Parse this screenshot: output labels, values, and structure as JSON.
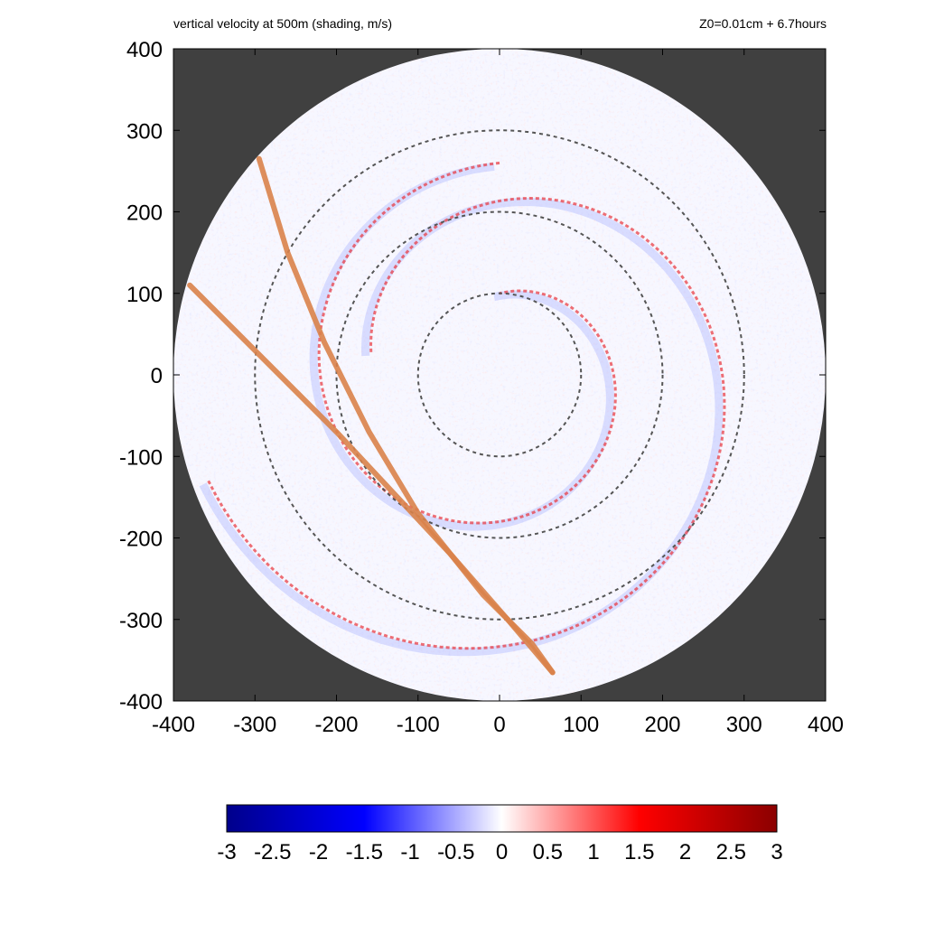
{
  "header": {
    "title": "vertical velocity at 500m (shading, m/s)",
    "subtitle": "Z0=0.01cm  + 6.7hours"
  },
  "chart_data": {
    "type": "heatmap",
    "title": "vertical velocity at 500m (shading, m/s)",
    "subtitle": "Z0=0.01cm  + 6.7hours",
    "xlabel": "",
    "ylabel": "",
    "xlim": [
      -400,
      400
    ],
    "ylim": [
      -400,
      400
    ],
    "x_ticks": [
      "-400",
      "-300",
      "-200",
      "-100",
      "0",
      "100",
      "200",
      "300",
      "400"
    ],
    "y_ticks": [
      "400",
      "300",
      "200",
      "100",
      "0",
      "-100",
      "-200",
      "-300",
      "-400"
    ],
    "domain_radius": 400,
    "background_color": "#404040",
    "dashed_circles_radius": [
      100,
      200,
      300
    ],
    "dashed_circle_color": "#555555",
    "spiral_bands_approx_radius": [
      {
        "sign": "positive",
        "start_angle_deg": 90,
        "r_start": 260,
        "r_end": 100,
        "turn_deg": 360
      },
      {
        "sign": "positive",
        "start_angle_deg": 200,
        "r_start": 380,
        "r_end": 160,
        "turn_deg": 330
      }
    ],
    "tracks": [
      {
        "color": "#d9824a",
        "points": [
          [
            -380,
            110
          ],
          [
            -330,
            60
          ],
          [
            -270,
            0
          ],
          [
            -200,
            -70
          ],
          [
            -130,
            -145
          ],
          [
            -60,
            -220
          ],
          [
            10,
            -300
          ],
          [
            65,
            -365
          ]
        ]
      },
      {
        "color": "#d9824a",
        "points": [
          [
            -295,
            265
          ],
          [
            -260,
            150
          ],
          [
            -215,
            40
          ],
          [
            -160,
            -70
          ],
          [
            -100,
            -170
          ],
          [
            -20,
            -270
          ],
          [
            40,
            -330
          ],
          [
            65,
            -365
          ]
        ]
      }
    ],
    "colorbar": {
      "min": -3,
      "max": 3,
      "ticks": [
        "-3",
        "-2.5",
        "-2",
        "-1.5",
        "-1",
        "-0.5",
        "0",
        "0.5",
        "1",
        "1.5",
        "2",
        "2.5",
        "3"
      ],
      "colors": [
        "#00008b",
        "#0000ff",
        "#ffffff",
        "#ff0000",
        "#8b0000"
      ]
    }
  }
}
